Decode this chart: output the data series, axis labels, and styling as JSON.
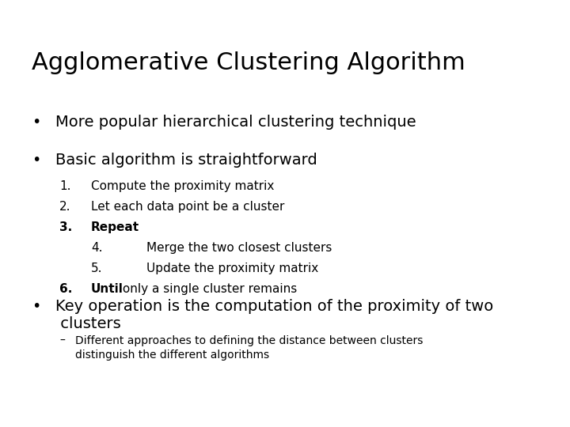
{
  "title": "Agglomerative Clustering Algorithm",
  "title_fontsize": 22,
  "background_color": "#ffffff",
  "text_color": "#000000",
  "bullet1": "More popular hierarchical clustering technique",
  "bullet2": "Basic algorithm is straightforward",
  "numbered_items": [
    {
      "num": "1.",
      "bold": false,
      "indent": 1,
      "text": "Compute the proximity matrix"
    },
    {
      "num": "2.",
      "bold": false,
      "indent": 1,
      "text": "Let each data point be a cluster"
    },
    {
      "num": "3.",
      "bold": true,
      "indent": 1,
      "text": "Repeat"
    },
    {
      "num": "4.",
      "bold": false,
      "indent": 2,
      "text": "Merge the two closest clusters"
    },
    {
      "num": "5.",
      "bold": false,
      "indent": 2,
      "text": "Update the proximity matrix"
    },
    {
      "num": "6.",
      "bold": true,
      "indent": 1,
      "text_bold": "Until",
      "text_normal": " only a single cluster remains"
    }
  ],
  "bullet3_line1": "Key operation is the computation of the proximity of two",
  "bullet3_line2": " clusters",
  "sub_bullet_line1": "Different approaches to defining the distance between clusters",
  "sub_bullet_line2": "distinguish the different algorithms",
  "body_fontsize": 14,
  "numbered_fontsize": 11,
  "sub_fontsize": 10,
  "font_family": "DejaVu Sans"
}
